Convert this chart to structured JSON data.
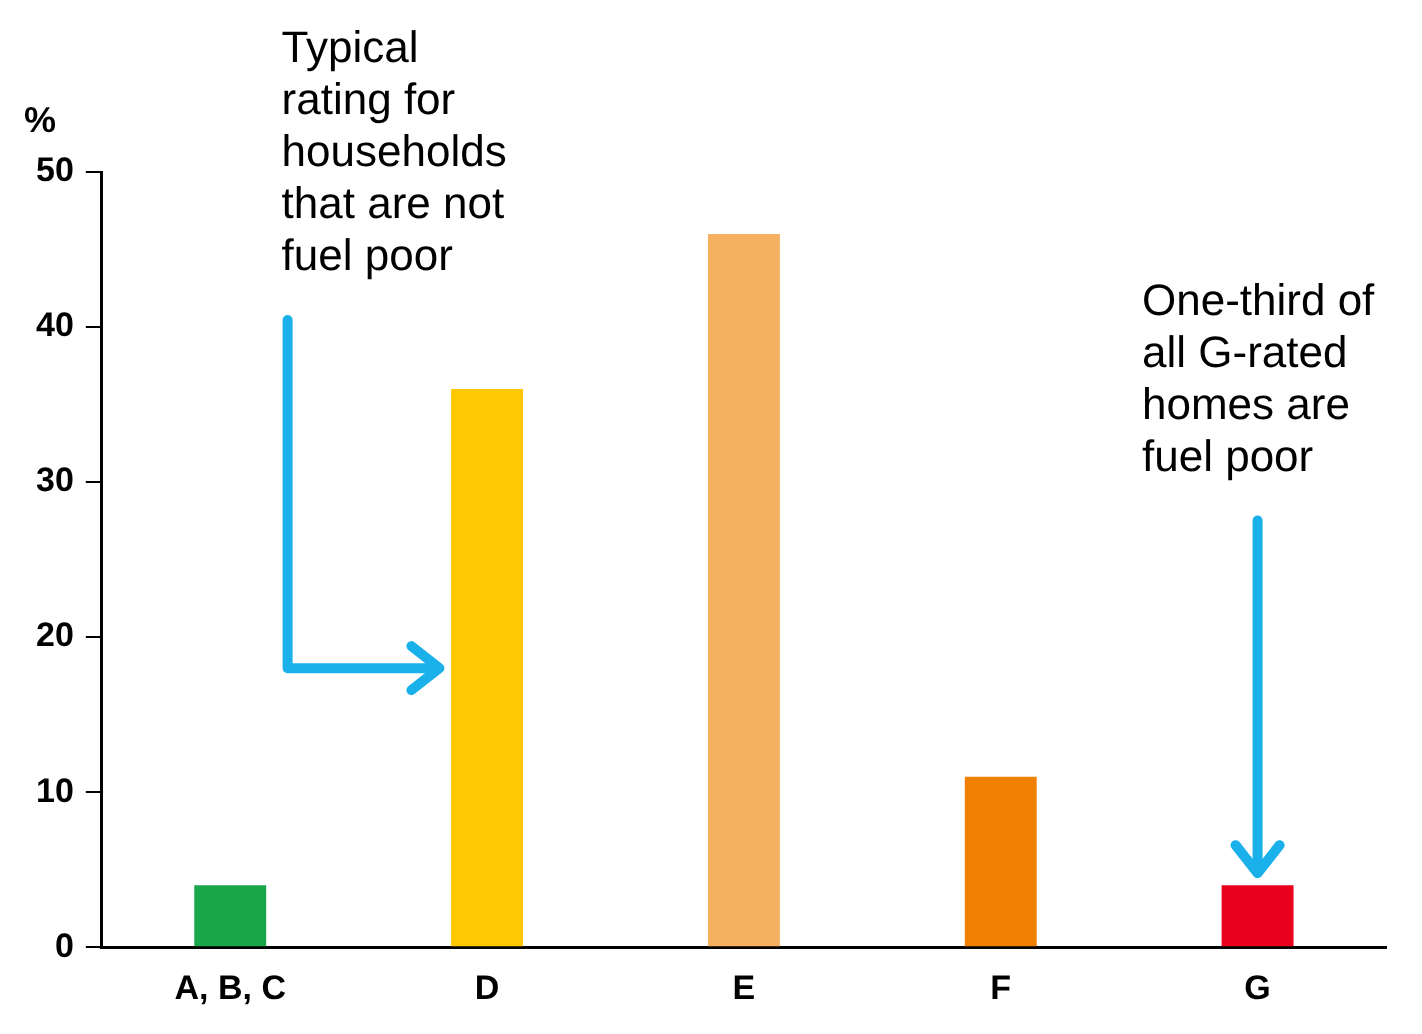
{
  "chart_data": {
    "type": "bar",
    "ylabel": "%",
    "categories": [
      "A, B, C",
      "D",
      "E",
      "F",
      "G"
    ],
    "values": [
      4,
      36,
      46,
      11,
      4
    ],
    "colors": [
      "#1aa64a",
      "#ffc800",
      "#f5b060",
      "#f08000",
      "#e8001c"
    ],
    "ylim": [
      0,
      50
    ],
    "yticks": [
      0,
      10,
      20,
      30,
      40,
      50
    ],
    "grid": false,
    "legend": false,
    "annotations": [
      "Typical rating for households that are not fuel poor",
      {
        "text": "One-third of all G-rated homes are fuel poor",
        "x": "G",
        "y": 4
      }
    ]
  }
}
